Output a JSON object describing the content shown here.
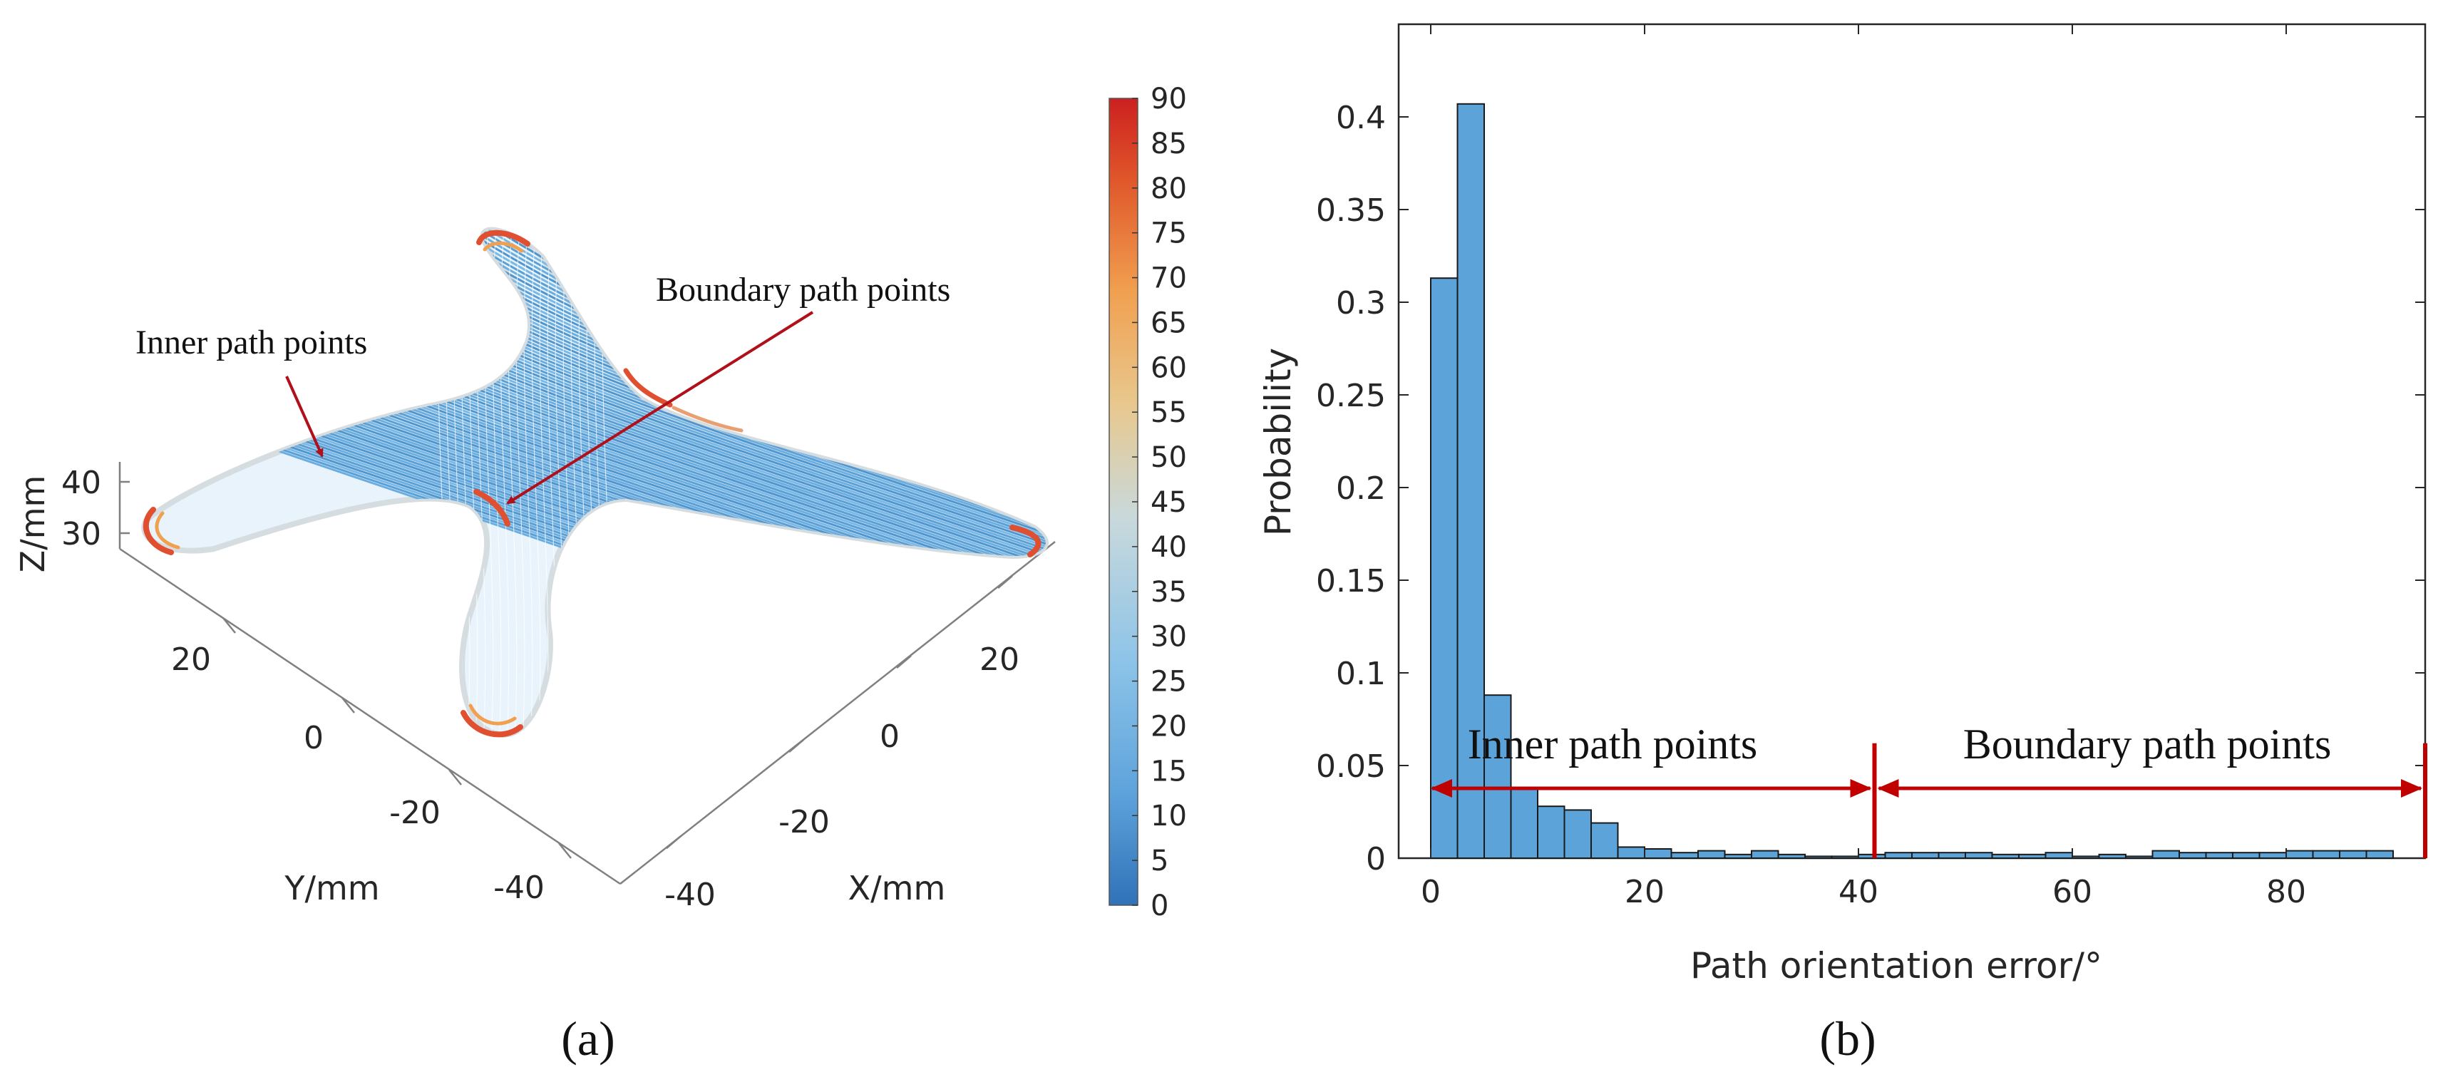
{
  "panel_a": {
    "caption": "(a)",
    "annotations": {
      "inner": "Inner path points",
      "boundary": "Boundary path points"
    },
    "axis_labels": {
      "x": "X/mm",
      "y": "Y/mm",
      "z": "Z/mm"
    },
    "x_ticks": [
      "-40",
      "-20",
      "0",
      "20"
    ],
    "y_ticks": [
      "-40",
      "-20",
      "0",
      "20"
    ],
    "z_ticks": [
      "30",
      "40"
    ],
    "colorbar": {
      "min": 0,
      "max": 90,
      "ticks": [
        "0",
        "5",
        "10",
        "15",
        "20",
        "25",
        "30",
        "35",
        "40",
        "45",
        "50",
        "55",
        "60",
        "65",
        "70",
        "75",
        "80",
        "85",
        "90"
      ],
      "colors": [
        "#3072b8",
        "#5ea3dc",
        "#8cc3e8",
        "#c9d9dc",
        "#e8c88e",
        "#f1a050",
        "#e0562a",
        "#cc2020"
      ]
    },
    "colors": {
      "inner": "#6aaee0",
      "boundary": "#e05030",
      "outline": "#cfd8dc"
    }
  },
  "panel_b": {
    "caption": "(b)",
    "annotations": {
      "inner": "Inner path points",
      "boundary": "Boundary path points",
      "arrow_color": "#c00000"
    }
  },
  "chart_data": {
    "type": "bar",
    "title": "",
    "xlabel": "Path orientation error/°",
    "ylabel": "Probability",
    "xlim": [
      -3,
      93
    ],
    "ylim": [
      0,
      0.45
    ],
    "x_ticks": [
      0,
      20,
      40,
      60,
      80
    ],
    "x_tick_labels": [
      "0",
      "20",
      "40",
      "60",
      "80"
    ],
    "y_ticks": [
      0,
      0.05,
      0.1,
      0.15,
      0.2,
      0.25,
      0.3,
      0.35,
      0.4
    ],
    "y_tick_labels": [
      "0",
      "0.05",
      "0.1",
      "0.15",
      "0.2",
      "0.25",
      "0.3",
      "0.35",
      "0.4"
    ],
    "bin_width": 2.5,
    "bin_start": 0,
    "values": [
      0.313,
      0.407,
      0.088,
      0.038,
      0.028,
      0.026,
      0.019,
      0.006,
      0.005,
      0.003,
      0.004,
      0.002,
      0.004,
      0.002,
      0.001,
      0.001,
      0.002,
      0.003,
      0.003,
      0.003,
      0.003,
      0.002,
      0.002,
      0.003,
      0.001,
      0.002,
      0.001,
      0.004,
      0.003,
      0.003,
      0.003,
      0.003,
      0.004,
      0.004,
      0.004,
      0.004
    ],
    "bar_color": "#5ba3d9",
    "divider_x": [
      41.5,
      93
    ],
    "arrow_y": 0.04
  }
}
